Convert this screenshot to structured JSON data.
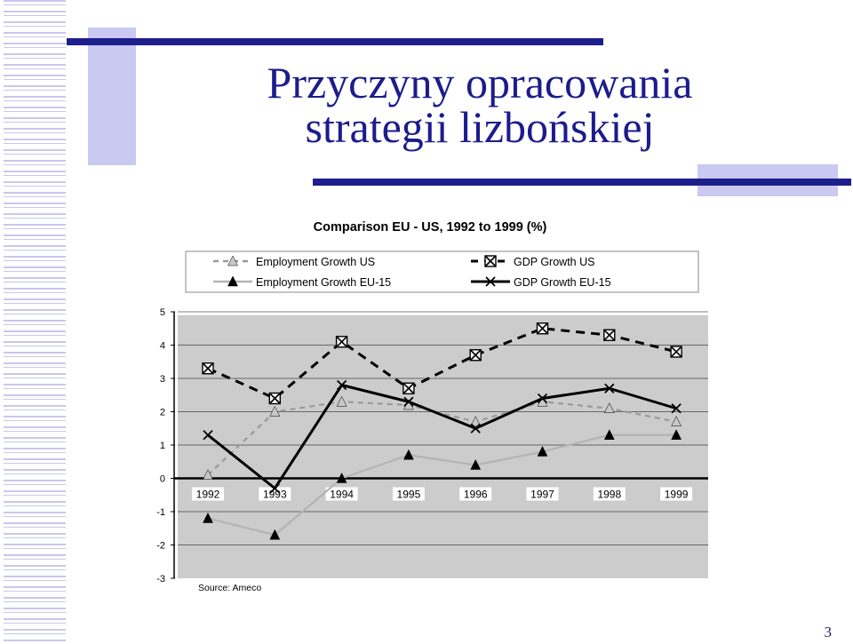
{
  "slide": {
    "title_line1": "Przyczyny opracowania",
    "title_line2": "strategii lizbońskiej",
    "page_number": "3"
  },
  "colors": {
    "accent_dark": "#1e1e8c",
    "accent_light": "#c9c9f2",
    "plot_background": "#cccccc"
  },
  "chart_data": {
    "type": "line",
    "title": "Comparison EU - US, 1992 to 1999 (%)",
    "source": "Source: Ameco",
    "categories": [
      "1992",
      "1993",
      "1994",
      "1995",
      "1996",
      "1997",
      "1998",
      "1999"
    ],
    "ylim": [
      -3,
      5
    ],
    "yticks": [
      "5",
      "4",
      "3",
      "2",
      "1",
      "0",
      "-1",
      "-2",
      "-3"
    ],
    "grid": true,
    "legend_position": "top",
    "series": [
      {
        "name": "Employment Growth US",
        "color": "#9a9a9a",
        "style": "dashed",
        "marker": "triangle",
        "values": [
          0.1,
          2.0,
          2.3,
          2.2,
          1.7,
          2.3,
          2.1,
          1.7
        ]
      },
      {
        "name": "GDP Growth US",
        "color": "#000000",
        "style": "dashed",
        "marker": "boxed-x",
        "values": [
          3.3,
          2.4,
          4.1,
          2.7,
          3.7,
          4.5,
          4.3,
          3.8
        ]
      },
      {
        "name": "Employment Growth EU-15",
        "color": "#b4b4b4",
        "style": "solid",
        "marker": "triangle",
        "values": [
          -1.2,
          -1.7,
          0.0,
          0.7,
          0.4,
          0.8,
          1.3,
          1.3
        ]
      },
      {
        "name": "GDP Growth EU-15",
        "color": "#000000",
        "style": "solid",
        "marker": "x",
        "values": [
          1.3,
          -0.3,
          2.8,
          2.3,
          1.5,
          2.4,
          2.7,
          2.1
        ]
      }
    ]
  }
}
